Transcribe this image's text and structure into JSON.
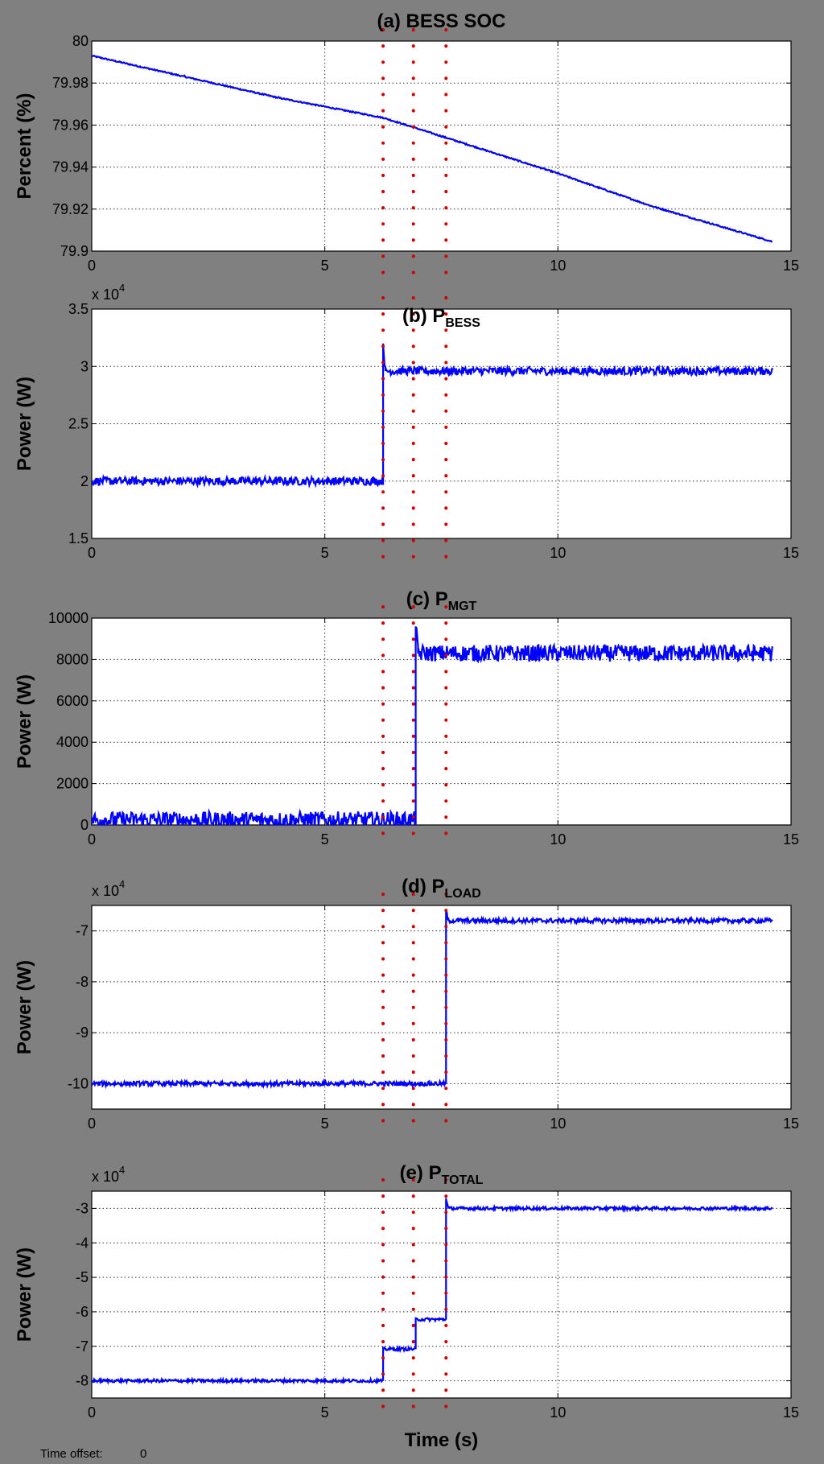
{
  "footer": {
    "label": "Time offset:",
    "value": "0"
  },
  "colors": {
    "signal": "#0000ff",
    "marker": "#cc0000",
    "background": "#808080",
    "axes": "#ffffff"
  },
  "chart_data": [
    {
      "type": "line",
      "title_main": "(a) BESS SOC",
      "title_sub": "",
      "ylabel": "Percent (%)",
      "xlabel": "",
      "xlim": [
        0,
        15
      ],
      "ylim": [
        79.9,
        80
      ],
      "x_ticks": [
        "0",
        "5",
        "10",
        "15"
      ],
      "y_ticks": [
        {
          "v": 80,
          "label": "80"
        },
        {
          "v": 79.98,
          "label": "79.98"
        },
        {
          "v": 79.96,
          "label": "79.96"
        },
        {
          "v": 79.94,
          "label": "79.94"
        },
        {
          "v": 79.92,
          "label": "79.92"
        },
        {
          "v": 79.9,
          "label": "79.9"
        }
      ],
      "exponent": "",
      "grid": true,
      "markers_x": [
        6.25,
        6.9,
        7.6
      ],
      "series": [
        {
          "x": [
            0,
            2,
            4,
            6.25,
            7.6,
            10,
            12,
            14.6
          ],
          "y": [
            79.993,
            79.983,
            79.973,
            79.9635,
            79.954,
            79.937,
            79.9215,
            79.9045
          ],
          "noise": 0.0003
        }
      ]
    },
    {
      "type": "line",
      "title_main": "(b) P",
      "title_sub": "BESS",
      "ylabel": "Power (W)",
      "xlabel": "",
      "xlim": [
        0,
        15
      ],
      "ylim": [
        15000,
        35000
      ],
      "x_ticks": [
        "0",
        "5",
        "10",
        "15"
      ],
      "y_ticks": [
        {
          "v": 35000,
          "label": "3.5"
        },
        {
          "v": 30000,
          "label": "3"
        },
        {
          "v": 25000,
          "label": "2.5"
        },
        {
          "v": 20000,
          "label": "2"
        },
        {
          "v": 15000,
          "label": "1.5"
        }
      ],
      "exponent": "4",
      "grid": true,
      "markers_x": [
        6.25,
        6.9,
        7.6
      ],
      "series": [
        {
          "x": [
            0,
            6.25,
            6.25,
            6.3,
            6.3,
            14.6
          ],
          "y": [
            20000,
            20000,
            32000,
            29600,
            29600,
            29600
          ],
          "noise": 350
        }
      ]
    },
    {
      "type": "line",
      "title_main": "(c) P",
      "title_sub": "MGT",
      "ylabel": "Power (W)",
      "xlabel": "",
      "xlim": [
        0,
        15
      ],
      "ylim": [
        0,
        10000
      ],
      "x_ticks": [
        "0",
        "5",
        "10",
        "15"
      ],
      "y_ticks": [
        {
          "v": 10000,
          "label": "10000"
        },
        {
          "v": 8000,
          "label": "8000"
        },
        {
          "v": 6000,
          "label": "6000"
        },
        {
          "v": 4000,
          "label": "4000"
        },
        {
          "v": 2000,
          "label": "2000"
        },
        {
          "v": 0,
          "label": "0"
        }
      ],
      "exponent": "",
      "grid": true,
      "markers_x": [
        6.25,
        6.9,
        7.6
      ],
      "series": [
        {
          "x": [
            0,
            6.95,
            6.95,
            7.0,
            7.0,
            14.6
          ],
          "y": [
            250,
            250,
            9600,
            8300,
            8300,
            8300
          ],
          "noise": 400
        }
      ]
    },
    {
      "type": "line",
      "title_main": "(d) P",
      "title_sub": "LOAD",
      "ylabel": "Power (W)",
      "xlabel": "",
      "xlim": [
        0,
        15
      ],
      "ylim": [
        -105000,
        -65000
      ],
      "x_ticks": [
        "0",
        "5",
        "10",
        "15"
      ],
      "y_ticks": [
        {
          "v": -70000,
          "label": "-7"
        },
        {
          "v": -80000,
          "label": "-8"
        },
        {
          "v": -90000,
          "label": "-9"
        },
        {
          "v": -100000,
          "label": "-10"
        }
      ],
      "exponent": "4",
      "grid": true,
      "markers_x": [
        6.25,
        6.9,
        7.6
      ],
      "series": [
        {
          "x": [
            0,
            7.6,
            7.6,
            7.65,
            7.65,
            14.6
          ],
          "y": [
            -100000,
            -100000,
            -66000,
            -68000,
            -68000,
            -68000
          ],
          "noise": 450
        }
      ]
    },
    {
      "type": "line",
      "title_main": "(e) P",
      "title_sub": "TOTAL",
      "ylabel": "Power (W)",
      "xlabel": "Time (s)",
      "xlim": [
        0,
        15
      ],
      "ylim": [
        -85000,
        -25000
      ],
      "x_ticks": [
        "0",
        "5",
        "10",
        "15"
      ],
      "y_ticks": [
        {
          "v": -30000,
          "label": "-3"
        },
        {
          "v": -40000,
          "label": "-4"
        },
        {
          "v": -50000,
          "label": "-5"
        },
        {
          "v": -60000,
          "label": "-6"
        },
        {
          "v": -70000,
          "label": "-7"
        },
        {
          "v": -80000,
          "label": "-8"
        }
      ],
      "exponent": "4",
      "grid": true,
      "markers_x": [
        6.25,
        6.9,
        7.6
      ],
      "series": [
        {
          "x": [
            0,
            6.25,
            6.25,
            6.3,
            6.95,
            6.95,
            7.6,
            7.6,
            7.65,
            14.6
          ],
          "y": [
            -80000,
            -80000,
            -70800,
            -70800,
            -70800,
            -62200,
            -62200,
            -27000,
            -30000,
            -30000
          ],
          "noise": 450
        }
      ]
    }
  ]
}
